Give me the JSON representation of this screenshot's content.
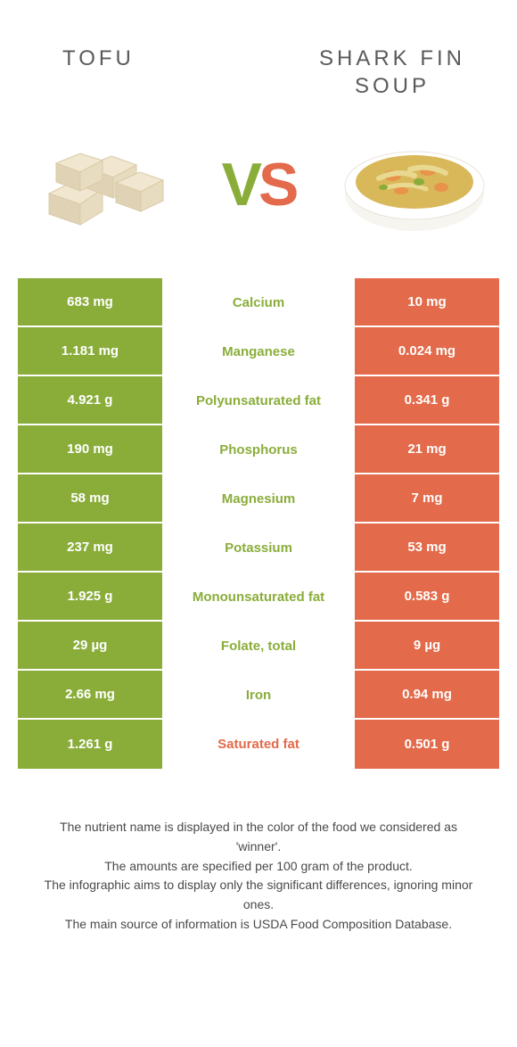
{
  "header": {
    "left_title": "TOFU",
    "right_title": "SHARK FIN SOUP"
  },
  "vs": {
    "v": "V",
    "s": "S"
  },
  "colors": {
    "left_bg": "#8aad3a",
    "right_bg": "#e36a4a",
    "left_text": "#8aad3a",
    "right_text": "#e36a4a"
  },
  "rows": [
    {
      "left": "683 mg",
      "label": "Calcium",
      "right": "10 mg",
      "winner": "left"
    },
    {
      "left": "1.181 mg",
      "label": "Manganese",
      "right": "0.024 mg",
      "winner": "left"
    },
    {
      "left": "4.921 g",
      "label": "Polyunsaturated fat",
      "right": "0.341 g",
      "winner": "left"
    },
    {
      "left": "190 mg",
      "label": "Phosphorus",
      "right": "21 mg",
      "winner": "left"
    },
    {
      "left": "58 mg",
      "label": "Magnesium",
      "right": "7 mg",
      "winner": "left"
    },
    {
      "left": "237 mg",
      "label": "Potassium",
      "right": "53 mg",
      "winner": "left"
    },
    {
      "left": "1.925 g",
      "label": "Monounsaturated fat",
      "right": "0.583 g",
      "winner": "left"
    },
    {
      "left": "29 µg",
      "label": "Folate, total",
      "right": "9 µg",
      "winner": "left"
    },
    {
      "left": "2.66 mg",
      "label": "Iron",
      "right": "0.94 mg",
      "winner": "left"
    },
    {
      "left": "1.261 g",
      "label": "Saturated fat",
      "right": "0.501 g",
      "winner": "right"
    }
  ],
  "footer": {
    "l1": "The nutrient name is displayed in the color of the food we considered as 'winner'.",
    "l2": "The amounts are specified per 100 gram of the product.",
    "l3": "The infographic aims to display only the significant differences, ignoring minor ones.",
    "l4": "The main source of information is USDA Food Composition Database."
  }
}
